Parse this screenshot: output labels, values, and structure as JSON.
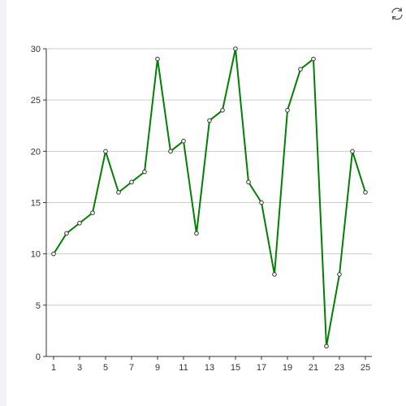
{
  "toolbar": {
    "refresh_icon": "refresh-icon"
  },
  "chart_data": {
    "type": "line",
    "x": [
      1,
      2,
      3,
      4,
      5,
      6,
      7,
      8,
      9,
      10,
      11,
      12,
      13,
      14,
      15,
      16,
      17,
      18,
      19,
      20,
      21,
      22,
      23,
      24,
      25
    ],
    "x_tick_labels": [
      "1",
      "3",
      "5",
      "7",
      "9",
      "11",
      "13",
      "15",
      "17",
      "19",
      "21",
      "23",
      "25"
    ],
    "series": [
      {
        "values": [
          10,
          12,
          13,
          14,
          20,
          16,
          17,
          18,
          29,
          20,
          21,
          12,
          23,
          24,
          30,
          17,
          15,
          8,
          24,
          28,
          29,
          1,
          8,
          20,
          16
        ],
        "color": "#008000"
      }
    ],
    "y_ticks": [
      "0",
      "5",
      "10",
      "15",
      "20",
      "25",
      "30"
    ],
    "ylim": [
      0,
      30
    ],
    "xlim": [
      1,
      25
    ],
    "title": "",
    "xlabel": "",
    "ylabel": "",
    "grid": "horizontal",
    "legend": "none"
  },
  "colors": {
    "line": "#008000",
    "marker_fill": "#ffffff",
    "grid": "#cccccc",
    "axis": "#333333",
    "sidebar": "#f3f3f7"
  }
}
